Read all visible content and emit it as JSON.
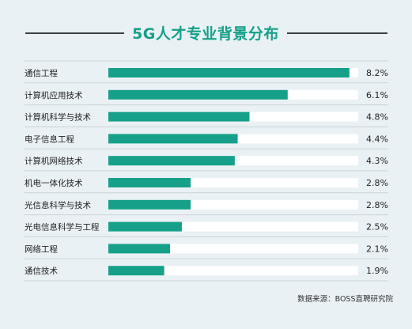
{
  "chart_data": {
    "type": "bar",
    "orientation": "horizontal",
    "title": "5G人才专业背景分布",
    "categories": [
      "通信工程",
      "计算机应用技术",
      "计算机科学与技术",
      "电子信息工程",
      "计算机网络技术",
      "机电一体化技术",
      "光信息科学与技术",
      "光电信息科学与工程",
      "网络工程",
      "通信技术"
    ],
    "values": [
      8.2,
      6.1,
      4.8,
      4.4,
      4.3,
      2.8,
      2.8,
      2.5,
      2.1,
      1.9
    ],
    "value_labels": [
      "8.2%",
      "6.1%",
      "4.8%",
      "4.4%",
      "4.3%",
      "2.8%",
      "2.8%",
      "2.5%",
      "2.1%",
      "1.9%"
    ],
    "xlim": [
      0,
      8.5
    ],
    "bar_color": "#16a089",
    "track_color": "#ffffff",
    "grid": false,
    "legend": "none"
  },
  "source": "数据来源：BOSS直聘研究院"
}
